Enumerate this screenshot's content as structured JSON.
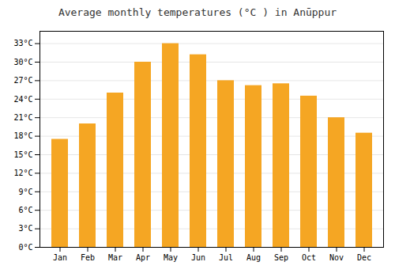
{
  "chart_data": {
    "type": "bar",
    "title": "Average monthly temperatures (°C ) in Anūppur",
    "categories": [
      "Jan",
      "Feb",
      "Mar",
      "Apr",
      "May",
      "Jun",
      "Jul",
      "Aug",
      "Sep",
      "Oct",
      "Nov",
      "Dec"
    ],
    "values": [
      17.5,
      20.0,
      25.0,
      30.0,
      33.0,
      31.2,
      27.0,
      26.2,
      26.5,
      24.5,
      21.0,
      18.5
    ],
    "color": "#F5A623",
    "ylim": [
      0,
      35
    ],
    "yticks": [
      {
        "value": 0,
        "label": "0°C"
      },
      {
        "value": 3,
        "label": "3°C"
      },
      {
        "value": 6,
        "label": "6°C"
      },
      {
        "value": 9,
        "label": "9°C"
      },
      {
        "value": 12,
        "label": "12°C"
      },
      {
        "value": 15,
        "label": "15°C"
      },
      {
        "value": 18,
        "label": "18°C"
      },
      {
        "value": 21,
        "label": "21°C"
      },
      {
        "value": 24,
        "label": "24°C"
      },
      {
        "value": 27,
        "label": "27°C"
      },
      {
        "value": 30,
        "label": "30°C"
      },
      {
        "value": 33,
        "label": "33°C"
      }
    ],
    "grid": true
  }
}
